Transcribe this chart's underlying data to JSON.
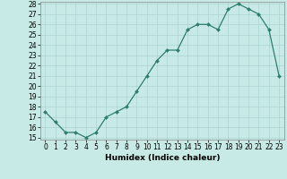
{
  "x": [
    0,
    1,
    2,
    3,
    4,
    5,
    6,
    7,
    8,
    9,
    10,
    11,
    12,
    13,
    14,
    15,
    16,
    17,
    18,
    19,
    20,
    21,
    22,
    23
  ],
  "y": [
    17.5,
    16.5,
    15.5,
    15.5,
    15.0,
    15.5,
    17.0,
    17.5,
    18.0,
    19.5,
    21.0,
    22.5,
    23.5,
    23.5,
    25.5,
    26.0,
    26.0,
    25.5,
    27.5,
    28.0,
    27.5,
    27.0,
    25.5,
    21.0
  ],
  "xlabel": "Humidex (Indice chaleur)",
  "xlim": [
    -0.5,
    23.5
  ],
  "ylim": [
    15,
    28
  ],
  "yticks": [
    15,
    16,
    17,
    18,
    19,
    20,
    21,
    22,
    23,
    24,
    25,
    26,
    27,
    28
  ],
  "xticks": [
    0,
    1,
    2,
    3,
    4,
    5,
    6,
    7,
    8,
    9,
    10,
    11,
    12,
    13,
    14,
    15,
    16,
    17,
    18,
    19,
    20,
    21,
    22,
    23
  ],
  "line_color": "#2e7d6e",
  "marker": "D",
  "marker_size": 2.0,
  "bg_color": "#c8eae6",
  "grid_color": "#aad4d0",
  "label_fontsize": 6.5,
  "tick_fontsize": 5.5
}
